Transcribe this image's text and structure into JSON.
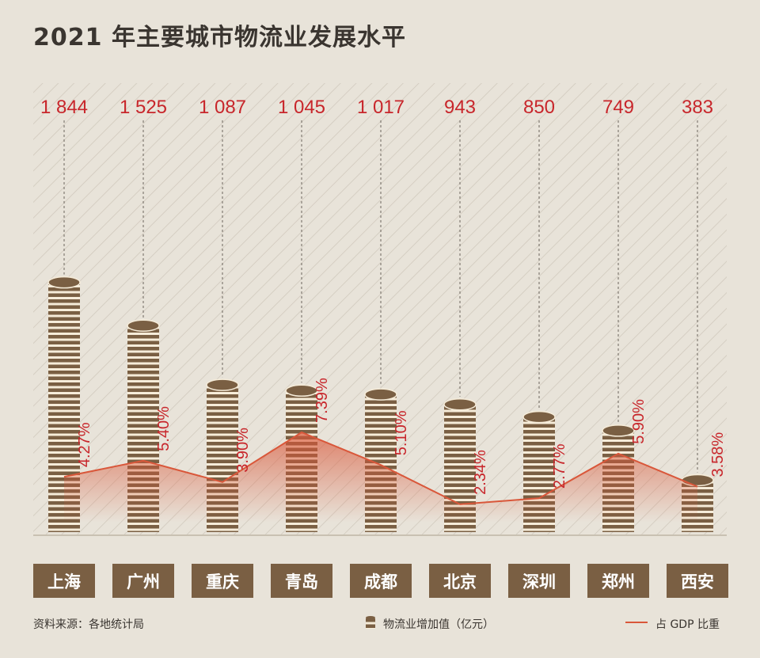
{
  "title": "2021 年主要城市物流业发展水平",
  "source": "资料来源：各地统计局",
  "legend": {
    "bars_label": "物流业增加值（亿元）",
    "line_label": "占 GDP 比重",
    "bars_icon": "coin-stack-icon"
  },
  "colors": {
    "accent_red": "#c8262b",
    "line": "#d9573a",
    "coin_dark": "#7a5f43",
    "coin_light": "#f6ecd9",
    "label_box": "#7a5f43",
    "background": "#e8e3d9"
  },
  "chart_data": {
    "type": "bar",
    "title": "2021 年主要城市物流业发展水平",
    "categories": [
      "上海",
      "广州",
      "重庆",
      "青岛",
      "成都",
      "北京",
      "深圳",
      "郑州",
      "西安"
    ],
    "value_labels": [
      "1 844",
      "1 525",
      "1 087",
      "1 045",
      "1 017",
      "943",
      "850",
      "749",
      "383"
    ],
    "series": [
      {
        "name": "物流业增加值（亿元）",
        "type": "bar",
        "values": [
          1844,
          1525,
          1087,
          1045,
          1017,
          943,
          850,
          749,
          383
        ]
      },
      {
        "name": "占 GDP 比重",
        "type": "line",
        "values": [
          4.27,
          5.4,
          3.9,
          7.39,
          5.1,
          2.34,
          2.77,
          5.9,
          3.58
        ],
        "labels": [
          "4.27%",
          "5.40%",
          "3.90%",
          "7.39%",
          "5.10%",
          "2.34%",
          "2.77%",
          "5.90%",
          "3.58%"
        ]
      }
    ],
    "grid": false,
    "legend_position": "bottom"
  }
}
